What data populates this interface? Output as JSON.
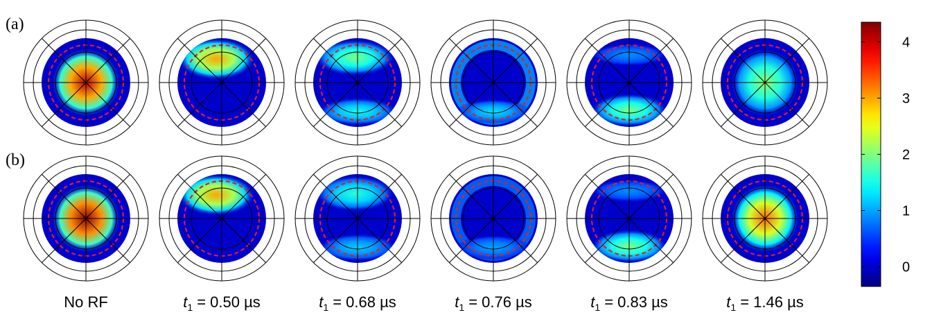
{
  "row_labels": [
    "(a)",
    "(b)"
  ],
  "column_labels": [
    {
      "italic": "",
      "sub": "",
      "rest": "No RF"
    },
    {
      "italic": "t",
      "sub": "1",
      "rest": " = 0.50 µs"
    },
    {
      "italic": "t",
      "sub": "1",
      "rest": " = 0.68 µs"
    },
    {
      "italic": "t",
      "sub": "1",
      "rest": " = 0.76 µs"
    },
    {
      "italic": "t",
      "sub": "1",
      "rest": " = 0.83 µs"
    },
    {
      "italic": "t",
      "sub": "1",
      "rest": " = 1.46 µs"
    }
  ],
  "colorbar": {
    "ticks": [
      "0",
      "1",
      "2",
      "3",
      "4"
    ],
    "range": [
      -0.35,
      4.35
    ],
    "colormap": "jet"
  },
  "panels": {
    "a": [
      {
        "pattern": "center",
        "peak": 4.1
      },
      {
        "pattern": "top",
        "peak": 3.0
      },
      {
        "pattern": "top-bottom",
        "peak": 2.0
      },
      {
        "pattern": "ring",
        "peak": 1.3
      },
      {
        "pattern": "bottom",
        "peak": 2.0
      },
      {
        "pattern": "center",
        "peak": 2.1
      }
    ],
    "b": [
      {
        "pattern": "center",
        "peak": 4.3
      },
      {
        "pattern": "top",
        "peak": 3.0
      },
      {
        "pattern": "top-bottom",
        "peak": 1.6
      },
      {
        "pattern": "ring",
        "peak": 1.0
      },
      {
        "pattern": "bottom",
        "peak": 2.0
      },
      {
        "pattern": "center",
        "peak": 3.3
      }
    ]
  }
}
